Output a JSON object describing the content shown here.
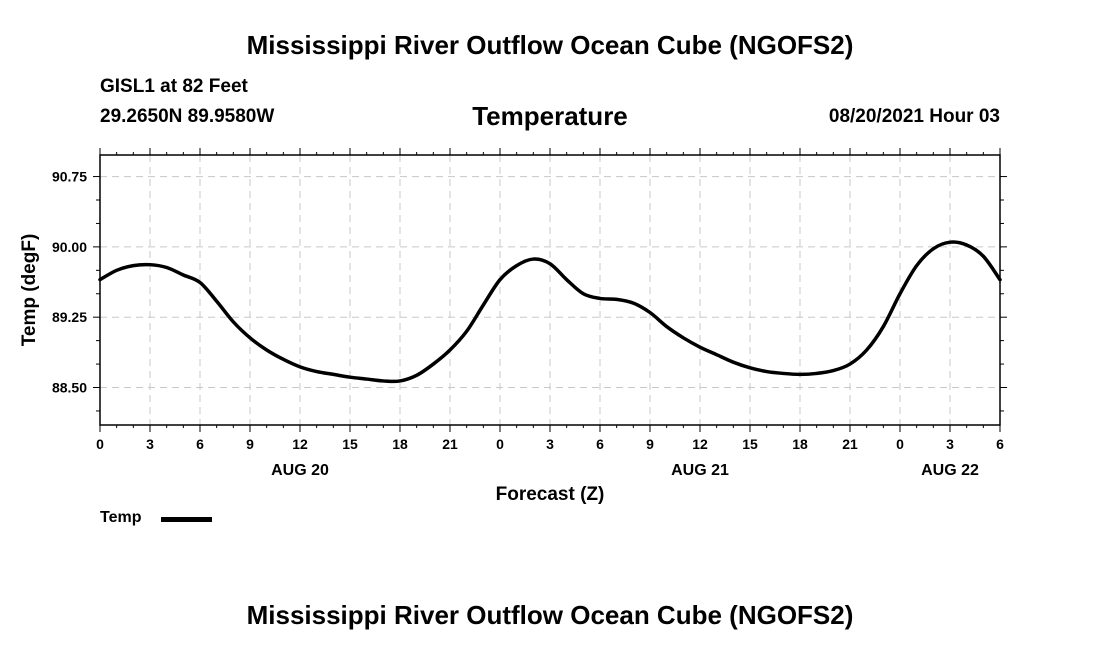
{
  "header": {
    "main_title": "Mississippi River Outflow Ocean Cube (NGOFS2)",
    "station": "GISL1 at 82 Feet",
    "coords": "29.2650N  89.9580W",
    "chart_title": "Temperature",
    "datetime": "08/20/2021 Hour 03"
  },
  "footer": {
    "main_title": "Mississippi River Outflow Ocean Cube (NGOFS2)"
  },
  "legend": {
    "label": "Temp"
  },
  "colors": {
    "line": "#000000",
    "grid": "#c8c8c8"
  },
  "chart_data": {
    "type": "line",
    "title": "Temperature",
    "xlabel": "Forecast (Z)",
    "ylabel": "Temp (degF)",
    "xlim": [
      0,
      54
    ],
    "ylim": [
      88.1,
      90.98
    ],
    "yticks": [
      88.5,
      89.25,
      90.0,
      90.75
    ],
    "ytick_labels": [
      "88.50",
      "89.25",
      "90.00",
      "90.75"
    ],
    "xticks": [
      0,
      3,
      6,
      9,
      12,
      15,
      18,
      21,
      24,
      27,
      30,
      33,
      36,
      39,
      42,
      45,
      48,
      51,
      54
    ],
    "xtick_labels": [
      "0",
      "3",
      "6",
      "9",
      "12",
      "15",
      "18",
      "21",
      "0",
      "3",
      "6",
      "9",
      "12",
      "15",
      "18",
      "21",
      "0",
      "3",
      "6"
    ],
    "date_labels": [
      {
        "x": 12,
        "label": "AUG 20"
      },
      {
        "x": 36,
        "label": "AUG 21"
      },
      {
        "x": 51,
        "label": "AUG 22"
      }
    ],
    "grid": true,
    "series": [
      {
        "name": "Temp",
        "x": [
          0,
          1,
          2,
          3,
          4,
          5,
          6,
          7,
          8,
          9,
          10,
          11,
          12,
          13,
          14,
          15,
          16,
          17,
          18,
          19,
          20,
          21,
          22,
          23,
          24,
          25,
          26,
          27,
          28,
          29,
          30,
          31,
          32,
          33,
          34,
          35,
          36,
          37,
          38,
          39,
          40,
          41,
          42,
          43,
          44,
          45,
          46,
          47,
          48,
          49,
          50,
          51,
          52,
          53,
          54
        ],
        "values": [
          89.65,
          89.75,
          89.8,
          89.81,
          89.78,
          89.7,
          89.62,
          89.42,
          89.2,
          89.03,
          88.9,
          88.8,
          88.72,
          88.67,
          88.64,
          88.61,
          88.59,
          88.57,
          88.57,
          88.63,
          88.75,
          88.9,
          89.1,
          89.38,
          89.65,
          89.8,
          89.87,
          89.82,
          89.65,
          89.5,
          89.45,
          89.44,
          89.4,
          89.3,
          89.15,
          89.03,
          88.93,
          88.85,
          88.77,
          88.71,
          88.67,
          88.65,
          88.64,
          88.65,
          88.68,
          88.75,
          88.9,
          89.15,
          89.5,
          89.8,
          89.98,
          90.05,
          90.02,
          89.9,
          89.65
        ]
      }
    ]
  }
}
